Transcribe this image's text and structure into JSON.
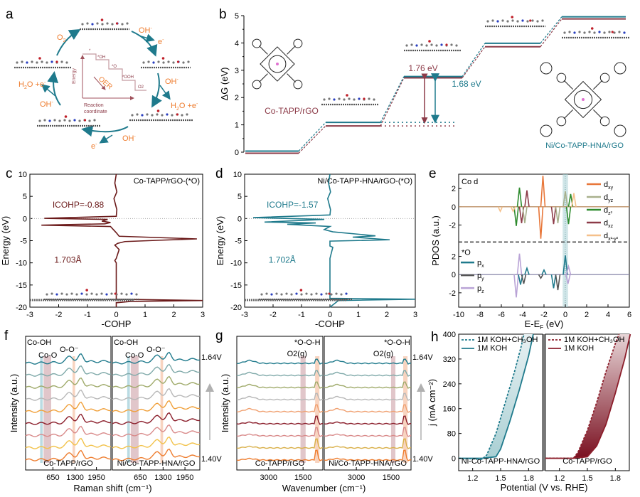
{
  "figure": {
    "panel_labels": [
      "a",
      "b",
      "c",
      "d",
      "e",
      "f",
      "g",
      "h"
    ]
  },
  "colors": {
    "teal": "#1f7a8c",
    "maroon": "#8c3b48",
    "dark_maroon": "#6b1a1a",
    "orange": "#ee7d2f",
    "grey_arrow": "#b0b0b0"
  },
  "panel_a": {
    "species": [
      "O2",
      "OH-",
      "e-",
      "OH-",
      "H2O +e-",
      "OH-",
      "e-",
      "OH-",
      "H2O +e-"
    ],
    "labels": {
      "o2": "O",
      "o2_sub": "2",
      "oh_top": "OH",
      "e_top": "e",
      "oh_right": "OH",
      "h2o_right": "H",
      "h2o_right_rest": "O +e",
      "oh_bottom": "OH",
      "e_bottom": "e",
      "oh_left": "OH",
      "h2o_left": "H",
      "h2o_left_rest": "O +e"
    },
    "inset": {
      "energy": "Energy",
      "reaction": "Reaction",
      "coordinate": "coordinate",
      "oer": "OER",
      "steps": [
        "*",
        "*OH",
        "*O",
        "*OOH",
        "O2"
      ]
    }
  },
  "chart_data": [
    {
      "panel": "b",
      "type": "line",
      "title": "",
      "ylabel": "ΔG (eV)",
      "ylim": [
        0,
        5
      ],
      "yticks": [
        "0",
        "1",
        "2",
        "3",
        "4",
        "5"
      ],
      "series": [
        {
          "name": "Co-TAPP/rGO",
          "color": "#8c3b48",
          "steps": [
            0,
            1.0,
            2.76,
            3.9,
            4.92
          ]
        },
        {
          "name": "Ni/Co-TAPP-HNA/rGO",
          "color": "#1f7a8c",
          "steps": [
            0,
            1.05,
            2.73,
            3.95,
            4.92
          ]
        }
      ],
      "annotations": [
        {
          "text": "1.76 eV",
          "color": "#8c3b48"
        },
        {
          "text": "1.68 eV",
          "color": "#1f7a8c"
        },
        {
          "text": "Co-TAPP/rGO",
          "color": "#8c3b48"
        },
        {
          "text": "Ni/Co-TAPP-HNA/rGO",
          "color": "#1f7a8c"
        }
      ]
    },
    {
      "panel": "c",
      "type": "line",
      "title": "Co-TAPP/rGO-(*O)",
      "xlabel": "-COHP",
      "ylabel": "Energy (eV)",
      "xlim": [
        -3,
        3
      ],
      "ylim": [
        -20,
        10
      ],
      "xticks": [
        "-3",
        "-2",
        "-1",
        "0",
        "1",
        "2",
        "3"
      ],
      "yticks": [
        "10",
        "5",
        "0",
        "-5",
        "-10",
        "-15",
        "-20"
      ],
      "color": "#6b1a1a",
      "annotations": [
        {
          "text": "ICOHP=-0.88"
        },
        {
          "text": "1.703Å"
        }
      ],
      "points": [
        [
          0,
          10
        ],
        [
          -0.05,
          8
        ],
        [
          0.02,
          6
        ],
        [
          -0.08,
          4.5
        ],
        [
          0.02,
          2
        ],
        [
          0,
          0.5
        ],
        [
          -2.5,
          0.05
        ],
        [
          -0.3,
          -0.2
        ],
        [
          -0.5,
          -0.6
        ],
        [
          -0.2,
          -0.9
        ],
        [
          -0.4,
          -1.2
        ],
        [
          -2.6,
          -1.5
        ],
        [
          -0.2,
          -1.8
        ],
        [
          -0.1,
          -2.5
        ],
        [
          0,
          -3.2
        ],
        [
          0.1,
          -4
        ],
        [
          2.8,
          -4.6
        ],
        [
          1.5,
          -4.9
        ],
        [
          0.3,
          -5.2
        ],
        [
          0.05,
          -5.6
        ],
        [
          -0.05,
          -6
        ],
        [
          0.1,
          -7
        ],
        [
          0,
          -9
        ],
        [
          -0.05,
          -9.5
        ],
        [
          0,
          -10
        ],
        [
          0,
          -18.2
        ],
        [
          3,
          -18.5
        ],
        [
          0.5,
          -18.7
        ],
        [
          0,
          -19
        ],
        [
          0,
          -20
        ]
      ]
    },
    {
      "panel": "d",
      "type": "line",
      "title": "Ni/Co-TAPP-HNA/rGO-(*O)",
      "xlabel": "-COHP",
      "ylabel": "Energy (eV)",
      "xlim": [
        -3,
        3
      ],
      "ylim": [
        -20,
        10
      ],
      "xticks": [
        "-3",
        "-2",
        "-1",
        "0",
        "1",
        "2",
        "3"
      ],
      "yticks": [
        "10",
        "5",
        "0",
        "-5",
        "-10",
        "-15",
        "-20"
      ],
      "color": "#1f7a8c",
      "annotations": [
        {
          "text": "ICOHP=-1.57"
        },
        {
          "text": "1.702Å"
        }
      ],
      "points": [
        [
          0,
          10
        ],
        [
          -0.05,
          8
        ],
        [
          0.02,
          6
        ],
        [
          -0.08,
          4.5
        ],
        [
          0.02,
          2
        ],
        [
          0,
          0.8
        ],
        [
          -2.7,
          0.2
        ],
        [
          -0.2,
          -0.2
        ],
        [
          -2.3,
          -0.8
        ],
        [
          -0.5,
          -1.0
        ],
        [
          -1.5,
          -1.3
        ],
        [
          0,
          -1.8
        ],
        [
          -0.2,
          -2.5
        ],
        [
          0.1,
          -3
        ],
        [
          1.6,
          -3.9
        ],
        [
          0.8,
          -4.2
        ],
        [
          2.1,
          -4.8
        ],
        [
          0,
          -5.1
        ],
        [
          0,
          -6.2
        ],
        [
          0.1,
          -6.5
        ],
        [
          0,
          -9
        ],
        [
          0,
          -18
        ],
        [
          3,
          -18.2
        ],
        [
          0.3,
          -18.5
        ],
        [
          0,
          -20
        ]
      ]
    },
    {
      "panel": "e",
      "type": "line",
      "xlabel": "E-E_F (eV)",
      "ylabel": "PDOS (a.u.)",
      "xlim": [
        -10,
        6
      ],
      "xticks": [
        "-10",
        "-8",
        "-6",
        "-4",
        "-2",
        "0",
        "2",
        "4",
        "6"
      ],
      "yticks_top": [
        "2",
        "0",
        "-2"
      ],
      "yticks_bottom": [
        "2",
        "0",
        "-2"
      ],
      "top_label": "Co d",
      "bottom_label": "*O",
      "legend_top": [
        {
          "name": "d_xy",
          "base": "d",
          "sub": "xy",
          "color": "#e8773a"
        },
        {
          "name": "d_yz",
          "base": "d",
          "sub": "yz",
          "color": "#a8b08c"
        },
        {
          "name": "d_z2",
          "base": "d",
          "sub": "z²",
          "color": "#2e8b2e"
        },
        {
          "name": "d_xz",
          "base": "d",
          "sub": "xz",
          "color": "#8c3b48"
        },
        {
          "name": "d_x2-y2",
          "base": "d",
          "sub": "x²-y²",
          "color": "#f5c08a"
        }
      ],
      "legend_bottom": [
        {
          "name": "p_x",
          "base": "p",
          "sub": "x",
          "color": "#1f7a8c"
        },
        {
          "name": "p_y",
          "base": "p",
          "sub": "y",
          "color": "#555555"
        },
        {
          "name": "p_z",
          "base": "p",
          "sub": "z",
          "color": "#b9a3d6"
        }
      ],
      "peaks_top": [
        {
          "series": "d_z2",
          "x": -4.3,
          "y": 2.1
        },
        {
          "series": "d_z2",
          "x": -4.6,
          "y": -2.1
        },
        {
          "series": "d_xz",
          "x": -3.6,
          "y": 1.8
        },
        {
          "series": "d_xz",
          "x": -4.1,
          "y": -1.8
        },
        {
          "series": "d_yz",
          "x": -3.8,
          "y": -1.8
        },
        {
          "series": "d_xy",
          "x": -2.1,
          "y": 3.4
        },
        {
          "series": "d_xy",
          "x": -2.3,
          "y": -3.5
        },
        {
          "series": "d_xz",
          "x": -1.1,
          "y": -1.9
        },
        {
          "series": "d_yz",
          "x": -0.7,
          "y": -1.8
        },
        {
          "series": "d_yz",
          "x": 0.0,
          "y": 1.7
        },
        {
          "series": "d_z2",
          "x": 0.3,
          "y": -1.9
        },
        {
          "series": "d_z2",
          "x": 0.5,
          "y": 1.4
        },
        {
          "series": "d_x2-y2",
          "x": 0.8,
          "y": 1.5
        },
        {
          "series": "d_x2-y2",
          "x": -4.9,
          "y": -0.5
        },
        {
          "series": "d_x2-y2",
          "x": -6.1,
          "y": -0.5
        }
      ],
      "peaks_bottom": [
        {
          "series": "p_z",
          "x": -4.3,
          "y": 2.3
        },
        {
          "series": "p_z",
          "x": -4.6,
          "y": -2.5
        },
        {
          "series": "p_x",
          "x": -4.2,
          "y": -1.1
        },
        {
          "series": "p_x",
          "x": -3.6,
          "y": 0.7
        },
        {
          "series": "p_y",
          "x": -3.9,
          "y": -1.0
        },
        {
          "series": "p_x",
          "x": -2.0,
          "y": 0.5
        },
        {
          "series": "p_y",
          "x": -2.3,
          "y": -0.4
        },
        {
          "series": "p_x",
          "x": -1.1,
          "y": -1.5
        },
        {
          "series": "p_y",
          "x": -0.7,
          "y": -1.7
        },
        {
          "series": "p_x",
          "x": 0.0,
          "y": 2.1
        },
        {
          "series": "p_z",
          "x": 0.3,
          "y": 0.9
        },
        {
          "series": "p_z",
          "x": 0.25,
          "y": -1.0
        }
      ]
    },
    {
      "panel": "f",
      "type": "line",
      "xlabel": "Raman shift (cm⁻¹)",
      "ylabel": "Intensity (a.u.)",
      "xticks": [
        "650",
        "1300",
        "1950"
      ],
      "subpanels": [
        "Co-TAPP/rGO",
        "Ni/Co-TAPP-HNA/rGO"
      ],
      "band_labels": [
        "Co-OH",
        "Co-O",
        "O-O⁻"
      ],
      "potential_top": "1.64V",
      "potential_bottom": "1.40V",
      "n_curves": 9,
      "curve_colors": [
        "#ee7d2f",
        "#f2c24a",
        "#d98b8b",
        "#8b1e2b",
        "#f0a03a",
        "#b8b8b8",
        "#9faa6a",
        "#7fa9a9",
        "#1f7a8c"
      ]
    },
    {
      "panel": "g",
      "type": "line",
      "xlabel": "Wavenumber (cm⁻¹)",
      "ylabel": "Intensity (a.u.)",
      "xticks": [
        "3000",
        "1500"
      ],
      "subpanels": [
        "Co-TAPP/rGO",
        "Ni/Co-TAPP-HNA/rGO"
      ],
      "band_labels": [
        "*O-O-H",
        "O2(g)"
      ],
      "potential_top": "1.64V",
      "potential_bottom": "1.40V",
      "n_curves": 9,
      "curve_colors": [
        "#ee7d2f",
        "#d9b04a",
        "#d98b8b",
        "#8b1e2b",
        "#f0a070",
        "#b8b8b8",
        "#9faa6a",
        "#7fa9a9",
        "#1f7a8c"
      ]
    },
    {
      "panel": "h",
      "type": "line",
      "xlabel": "Potential (V vs. RHE)",
      "ylabel": "j (mA cm⁻²)",
      "ylim": [
        -40,
        400
      ],
      "yticks": [
        "0",
        "80",
        "160",
        "240",
        "320",
        "400"
      ],
      "xticks": [
        "1.2",
        "1.5",
        "1.8"
      ],
      "subpanels": [
        {
          "name": "Ni-Co-TAPP-HNA/rGO",
          "color": "#1f7a8c",
          "series": [
            {
              "name": "1M KOH+CH3OH",
              "style": "dashed",
              "points": [
                [
                  1.05,
                  0
                ],
                [
                  1.3,
                  -3
                ],
                [
                  1.35,
                  10
                ],
                [
                  1.45,
                  80
                ],
                [
                  1.55,
                  180
                ],
                [
                  1.65,
                  280
                ],
                [
                  1.72,
                  360
                ],
                [
                  1.75,
                  400
                ]
              ]
            },
            {
              "name": "1M KOH",
              "style": "solid",
              "points": [
                [
                  1.05,
                  0
                ],
                [
                  1.3,
                  0
                ],
                [
                  1.45,
                  5
                ],
                [
                  1.5,
                  30
                ],
                [
                  1.6,
                  120
                ],
                [
                  1.7,
                  220
                ],
                [
                  1.8,
                  330
                ],
                [
                  1.85,
                  400
                ]
              ]
            }
          ]
        },
        {
          "name": "Co-TAPP/rGO",
          "color": "#8c1e2b",
          "series": [
            {
              "name": "1M KOH+CH3OH",
              "style": "dashed",
              "points": [
                [
                  1.05,
                  0
                ],
                [
                  1.35,
                  0
                ],
                [
                  1.4,
                  20
                ],
                [
                  1.5,
                  90
                ],
                [
                  1.6,
                  180
                ],
                [
                  1.7,
                  280
                ],
                [
                  1.8,
                  370
                ],
                [
                  1.84,
                  400
                ]
              ]
            },
            {
              "name": "1M KOH",
              "style": "solid",
              "points": [
                [
                  1.05,
                  0
                ],
                [
                  1.35,
                  0
                ],
                [
                  1.5,
                  5
                ],
                [
                  1.6,
                  40
                ],
                [
                  1.7,
                  110
                ],
                [
                  1.8,
                  210
                ],
                [
                  1.9,
                  320
                ],
                [
                  1.96,
                  400
                ]
              ]
            }
          ]
        }
      ],
      "legend": [
        "1M KOH+CH₃OH",
        "1M KOH"
      ]
    }
  ]
}
